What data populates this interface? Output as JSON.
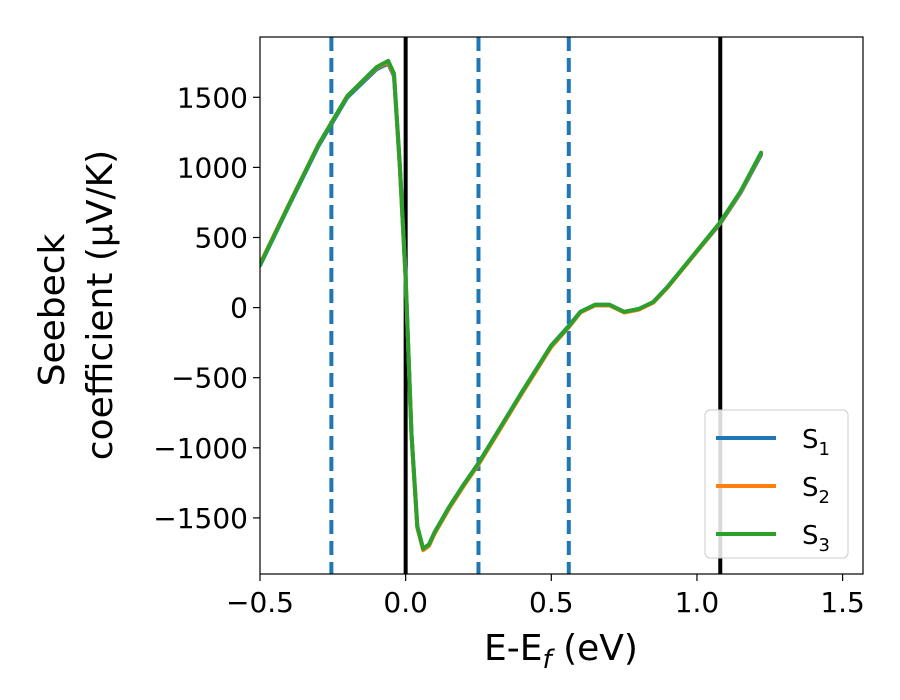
{
  "chart_data": {
    "type": "line",
    "xlabel": "E-E",
    "xlabel_sub": "f",
    "xlabel_unit": " (eV)",
    "ylabel_line1": "Seebeck",
    "ylabel_line2": "coefficient  (μV/K)",
    "xlim": [
      -0.5,
      1.57
    ],
    "ylim": [
      -1900,
      1930
    ],
    "xticks": [
      -0.5,
      0.0,
      0.5,
      1.0,
      1.5
    ],
    "xtick_labels": [
      "−0.5",
      "0.0",
      "0.5",
      "1.0",
      "1.5"
    ],
    "yticks": [
      -1500,
      -1000,
      -500,
      0,
      500,
      1000,
      1500
    ],
    "ytick_labels": [
      "−1500",
      "−1000",
      "−500",
      "0",
      "500",
      "1000",
      "1500"
    ],
    "vlines_solid": [
      0.0,
      1.08
    ],
    "vlines_dashed": [
      -0.255,
      0.25,
      0.56
    ],
    "legend_position": "lower right",
    "series": [
      {
        "name": "S",
        "name_sub": "1",
        "color": "#1f77b4",
        "x": [
          -0.5,
          -0.4,
          -0.3,
          -0.2,
          -0.1,
          -0.06,
          -0.04,
          -0.02,
          0.0,
          0.02,
          0.04,
          0.06,
          0.08,
          0.1,
          0.15,
          0.2,
          0.25,
          0.3,
          0.4,
          0.5,
          0.56,
          0.6,
          0.65,
          0.7,
          0.75,
          0.8,
          0.85,
          0.9,
          1.0,
          1.08,
          1.15,
          1.22
        ],
        "y": [
          300,
          730,
          1150,
          1500,
          1700,
          1740,
          1650,
          1000,
          200,
          -900,
          -1560,
          -1720,
          -1690,
          -1600,
          -1420,
          -1260,
          -1110,
          -940,
          -600,
          -270,
          -130,
          -30,
          20,
          20,
          -30,
          -10,
          40,
          150,
          400,
          600,
          820,
          1090
        ]
      },
      {
        "name": "S",
        "name_sub": "2",
        "color": "#ff7f0e",
        "x": [
          -0.5,
          -0.4,
          -0.3,
          -0.2,
          -0.1,
          -0.06,
          -0.04,
          -0.02,
          0.0,
          0.02,
          0.04,
          0.06,
          0.08,
          0.1,
          0.15,
          0.2,
          0.25,
          0.3,
          0.4,
          0.5,
          0.56,
          0.6,
          0.65,
          0.7,
          0.75,
          0.8,
          0.85,
          0.9,
          1.0,
          1.08,
          1.15,
          1.22
        ],
        "y": [
          310,
          740,
          1160,
          1510,
          1710,
          1750,
          1660,
          1010,
          210,
          -910,
          -1570,
          -1730,
          -1700,
          -1610,
          -1430,
          -1270,
          -1120,
          -950,
          -610,
          -280,
          -140,
          -35,
          15,
          15,
          -35,
          -15,
          35,
          145,
          400,
          605,
          825,
          1100
        ]
      },
      {
        "name": "S",
        "name_sub": "3",
        "color": "#2ca02c",
        "x": [
          -0.5,
          -0.4,
          -0.3,
          -0.2,
          -0.1,
          -0.06,
          -0.04,
          -0.02,
          0.0,
          0.02,
          0.04,
          0.06,
          0.08,
          0.1,
          0.15,
          0.2,
          0.25,
          0.3,
          0.4,
          0.5,
          0.56,
          0.6,
          0.65,
          0.7,
          0.75,
          0.8,
          0.85,
          0.9,
          1.0,
          1.08,
          1.15,
          1.22
        ],
        "y": [
          305,
          735,
          1160,
          1510,
          1715,
          1760,
          1670,
          1020,
          220,
          -900,
          -1560,
          -1720,
          -1690,
          -1600,
          -1420,
          -1260,
          -1110,
          -940,
          -600,
          -270,
          -135,
          -30,
          20,
          20,
          -30,
          -10,
          40,
          150,
          405,
          610,
          830,
          1105
        ]
      }
    ]
  }
}
